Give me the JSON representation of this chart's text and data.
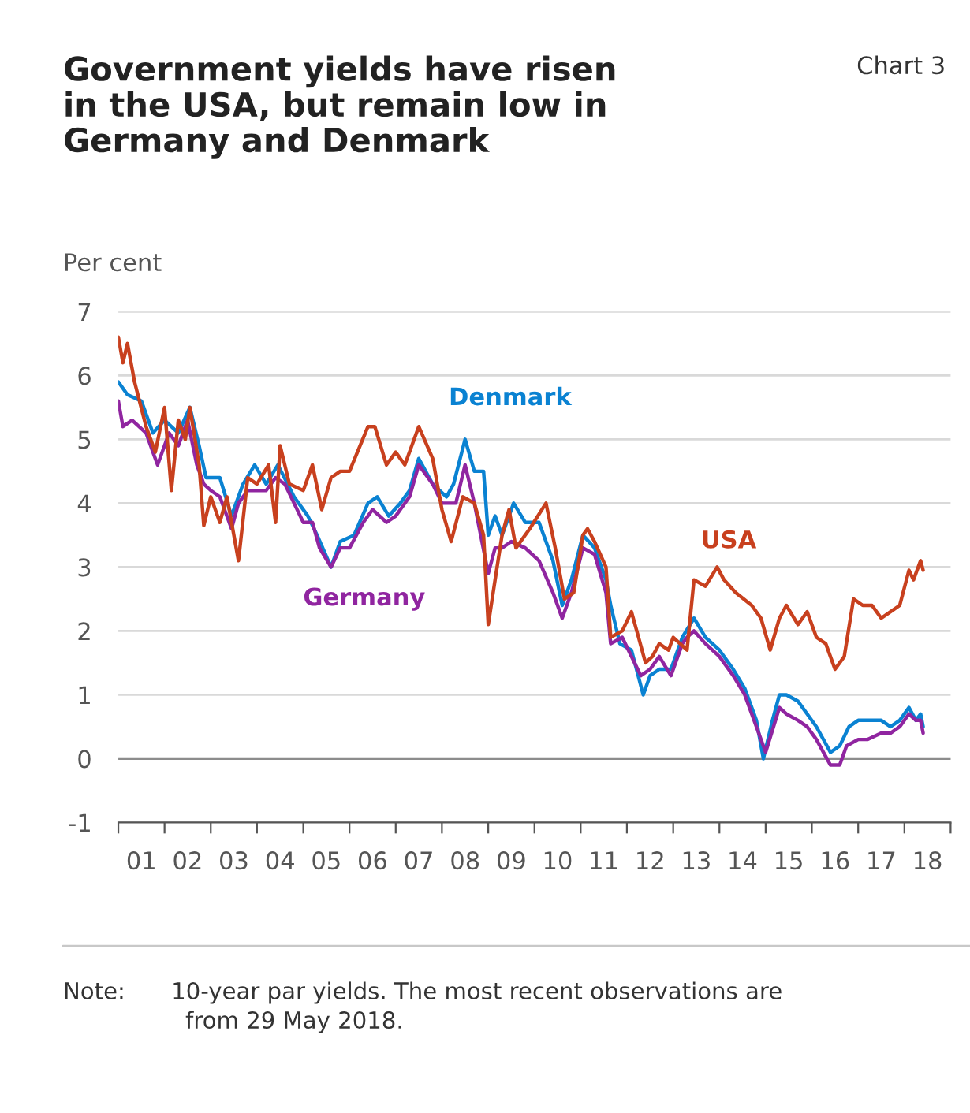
{
  "chart_data": {
    "type": "line",
    "title": "Government yields have risen\nin the USA, but remain low in\nGermany and Denmark",
    "ylabel": "Per cent",
    "annotations": [
      "Chart 3",
      "Note:  10-year par yields. The most recent observations are\n      from 29 May 2018."
    ],
    "xlim": [
      "2001",
      "2019"
    ],
    "xticks": [
      {
        "value": "2001",
        "label": null
      },
      {
        "value": "2001-07-02",
        "label": "01"
      },
      {
        "value": "2002",
        "label": null
      },
      {
        "value": "2002-07-02",
        "label": "02"
      },
      {
        "value": "2003",
        "label": null
      },
      {
        "value": "2003-07-02",
        "label": "03"
      },
      {
        "value": "2004",
        "label": null
      },
      {
        "value": "2004-07-02",
        "label": "04"
      },
      {
        "value": "2005",
        "label": null
      },
      {
        "value": "2005-07-02",
        "label": "05"
      },
      {
        "value": "2006",
        "label": null
      },
      {
        "value": "2006-07-02",
        "label": "06"
      },
      {
        "value": "2007",
        "label": null
      },
      {
        "value": "2007-07-02",
        "label": "07"
      },
      {
        "value": "2008",
        "label": null
      },
      {
        "value": "2008-07-02",
        "label": "08"
      },
      {
        "value": "2009",
        "label": null
      },
      {
        "value": "2009-07-02",
        "label": "09"
      },
      {
        "value": "2010",
        "label": null
      },
      {
        "value": "2010-07-02",
        "label": "10"
      },
      {
        "value": "2011",
        "label": null
      },
      {
        "value": "2011-07-02",
        "label": "11"
      },
      {
        "value": "2012",
        "label": null
      },
      {
        "value": "2012-07-02",
        "label": "12"
      },
      {
        "value": "2013",
        "label": null
      },
      {
        "value": "2013-07-02",
        "label": "13"
      },
      {
        "value": "2014",
        "label": null
      },
      {
        "value": "2014-07-02",
        "label": "14"
      },
      {
        "value": "2015",
        "label": null
      },
      {
        "value": "2015-07-02",
        "label": "15"
      },
      {
        "value": "2016",
        "label": null
      },
      {
        "value": "2016-07-02",
        "label": "16"
      },
      {
        "value": "2017",
        "label": null
      },
      {
        "value": "2017-07-02",
        "label": "17"
      },
      {
        "value": "2018",
        "label": null
      },
      {
        "value": "2018-07-02",
        "label": "18"
      },
      {
        "value": "2019",
        "label": null
      }
    ],
    "ylim": [
      -1,
      7
    ],
    "yticks": [
      -1,
      0,
      1,
      2,
      3,
      4,
      5,
      6,
      7
    ],
    "grid": "y",
    "line_style": "solid",
    "ref_lines": [
      {
        "axis": "y",
        "value": 0,
        "color": "#8c8c8c"
      }
    ],
    "series": [
      {
        "name": "Denmark",
        "color": "#0a82d2",
        "x": [
          "2001-01-01",
          "2001-03-14",
          "2001-07-02",
          "2001-10-01",
          "2002-01-01",
          "2002-04-20",
          "2002-07-20",
          "2002-10-01",
          "2002-11-25",
          "2003-03-14",
          "2003-06-14",
          "2003-09-13",
          "2003-12-14",
          "2004-03-14",
          "2004-06-14",
          "2004-10-20",
          "2005-02-06",
          "2005-04-20",
          "2005-08-08",
          "2005-10-20",
          "2006-02-06",
          "2006-05-27",
          "2006-08-08",
          "2006-11-07",
          "2007-02-06",
          "2007-04-20",
          "2007-07-02",
          "2007-10-20",
          "2008-02-06",
          "2008-04-02",
          "2008-07-02",
          "2008-09-13",
          "2008-11-25",
          "2009-01-01",
          "2009-02-24",
          "2009-04-20",
          "2009-07-20",
          "2009-10-20",
          "2010-02-06",
          "2010-05-27",
          "2010-08-08",
          "2010-10-20",
          "2011-01-19",
          "2011-04-20",
          "2011-07-20",
          "2011-08-26",
          "2011-11-07",
          "2012-02-06",
          "2012-05-09",
          "2012-07-02",
          "2012-09-13",
          "2012-12-14",
          "2013-03-14",
          "2013-06-14",
          "2013-09-13",
          "2014-01-01",
          "2014-04-20",
          "2014-07-20",
          "2014-10-20",
          "2014-12-14",
          "2015-02-24",
          "2015-04-20",
          "2015-06-14",
          "2015-09-13",
          "2015-11-25",
          "2016-02-06",
          "2016-05-27",
          "2016-08-08",
          "2016-10-20",
          "2017-01-01",
          "2017-03-14",
          "2017-07-02",
          "2017-09-13",
          "2017-11-25",
          "2018-02-06",
          "2018-04-02",
          "2018-05-09",
          "2018-05-29"
        ],
        "values": [
          5.9,
          5.7,
          5.6,
          5.1,
          5.3,
          5.1,
          5.5,
          4.9,
          4.4,
          4.4,
          3.8,
          4.3,
          4.6,
          4.3,
          4.6,
          4.1,
          3.8,
          3.5,
          3.0,
          3.4,
          3.5,
          4.0,
          4.1,
          3.8,
          4.0,
          4.2,
          4.7,
          4.3,
          4.1,
          4.3,
          5.0,
          4.5,
          4.5,
          3.5,
          3.8,
          3.5,
          4.0,
          3.7,
          3.7,
          3.1,
          2.4,
          2.8,
          3.5,
          3.3,
          2.8,
          2.4,
          1.8,
          1.7,
          1.0,
          1.3,
          1.4,
          1.4,
          1.9,
          2.2,
          1.9,
          1.7,
          1.4,
          1.1,
          0.6,
          0.0,
          0.6,
          1.0,
          1.0,
          0.9,
          0.7,
          0.5,
          0.1,
          0.2,
          0.5,
          0.6,
          0.6,
          0.6,
          0.5,
          0.6,
          0.8,
          0.6,
          0.7,
          0.5
        ]
      },
      {
        "name": "Germany",
        "color": "#9025a0",
        "x": [
          "2001-01-01",
          "2001-02-06",
          "2001-04-20",
          "2001-08-08",
          "2001-10-01",
          "2001-11-07",
          "2002-02-06",
          "2002-04-20",
          "2002-07-02",
          "2002-09-13",
          "2002-11-07",
          "2003-01-01",
          "2003-03-14",
          "2003-06-14",
          "2003-08-08",
          "2003-10-20",
          "2004-03-14",
          "2004-05-27",
          "2004-08-08",
          "2004-10-20",
          "2005-01-01",
          "2005-03-14",
          "2005-05-09",
          "2005-08-08",
          "2005-10-20",
          "2006-01-01",
          "2006-04-20",
          "2006-07-02",
          "2006-10-20",
          "2007-01-01",
          "2007-04-20",
          "2007-07-02",
          "2007-10-20",
          "2008-01-01",
          "2008-04-20",
          "2008-07-02",
          "2008-09-13",
          "2009-01-01",
          "2009-02-24",
          "2009-04-20",
          "2009-07-02",
          "2009-10-20",
          "2010-02-06",
          "2010-05-27",
          "2010-08-08",
          "2010-10-20",
          "2011-01-19",
          "2011-04-20",
          "2011-07-20",
          "2011-08-26",
          "2011-11-25",
          "2012-02-06",
          "2012-04-20",
          "2012-07-02",
          "2012-09-13",
          "2012-12-14",
          "2013-03-14",
          "2013-04-20",
          "2013-06-14",
          "2013-09-13",
          "2014-01-01",
          "2014-04-20",
          "2014-07-20",
          "2014-10-20",
          "2015-01-01",
          "2015-04-20",
          "2015-06-14",
          "2015-09-13",
          "2015-11-25",
          "2016-02-06",
          "2016-05-27",
          "2016-08-08",
          "2016-10-01",
          "2017-01-01",
          "2017-03-14",
          "2017-07-02",
          "2017-09-13",
          "2017-11-25",
          "2018-02-06",
          "2018-04-02",
          "2018-05-09",
          "2018-05-29"
        ],
        "values": [
          5.6,
          5.2,
          5.3,
          5.1,
          4.8,
          4.6,
          5.1,
          4.9,
          5.3,
          4.6,
          4.3,
          4.2,
          4.1,
          3.6,
          4.0,
          4.2,
          4.2,
          4.4,
          4.3,
          4.0,
          3.7,
          3.7,
          3.3,
          3.0,
          3.3,
          3.3,
          3.7,
          3.9,
          3.7,
          3.8,
          4.1,
          4.6,
          4.3,
          4.0,
          4.0,
          4.6,
          4.0,
          2.9,
          3.3,
          3.3,
          3.4,
          3.3,
          3.1,
          2.6,
          2.2,
          2.6,
          3.3,
          3.2,
          2.6,
          1.8,
          1.9,
          1.6,
          1.3,
          1.4,
          1.6,
          1.3,
          1.8,
          1.9,
          2.0,
          1.8,
          1.6,
          1.3,
          1.0,
          0.5,
          0.1,
          0.8,
          0.7,
          0.6,
          0.5,
          0.3,
          -0.1,
          -0.1,
          0.2,
          0.3,
          0.3,
          0.4,
          0.4,
          0.5,
          0.7,
          0.6,
          0.6,
          0.4
        ]
      },
      {
        "name": "USA",
        "color": "#c8401e",
        "x": [
          "2001-01-01",
          "2001-02-06",
          "2001-03-14",
          "2001-05-09",
          "2001-08-08",
          "2001-10-20",
          "2002-01-01",
          "2002-02-24",
          "2002-04-20",
          "2002-06-14",
          "2002-07-20",
          "2002-10-01",
          "2002-11-07",
          "2003-01-01",
          "2003-03-14",
          "2003-05-09",
          "2003-08-08",
          "2003-10-20",
          "2004-01-01",
          "2004-04-02",
          "2004-05-27",
          "2004-07-02",
          "2004-09-13",
          "2005-01-01",
          "2005-03-14",
          "2005-05-27",
          "2005-08-08",
          "2005-10-20",
          "2006-01-01",
          "2006-05-27",
          "2006-07-20",
          "2006-10-20",
          "2007-01-01",
          "2007-03-14",
          "2007-07-02",
          "2007-10-20",
          "2008-01-01",
          "2008-03-14",
          "2008-06-14",
          "2008-09-13",
          "2008-11-25",
          "2009-01-01",
          "2009-02-24",
          "2009-04-20",
          "2009-06-14",
          "2009-08-08",
          "2009-11-25",
          "2010-04-02",
          "2010-06-14",
          "2010-08-26",
          "2010-11-07",
          "2011-01-19",
          "2011-02-24",
          "2011-04-20",
          "2011-07-20",
          "2011-08-26",
          "2011-11-25",
          "2012-02-06",
          "2012-04-02",
          "2012-05-27",
          "2012-07-20",
          "2012-09-13",
          "2012-11-25",
          "2013-01-01",
          "2013-04-20",
          "2013-06-14",
          "2013-09-13",
          "2013-12-14",
          "2014-02-06",
          "2014-05-09",
          "2014-09-13",
          "2014-11-25",
          "2015-02-06",
          "2015-04-20",
          "2015-06-14",
          "2015-09-13",
          "2015-11-25",
          "2016-02-06",
          "2016-04-20",
          "2016-07-02",
          "2016-09-13",
          "2016-11-25",
          "2017-02-06",
          "2017-04-20",
          "2017-07-02",
          "2017-09-13",
          "2017-11-25",
          "2018-02-06",
          "2018-03-14",
          "2018-05-09",
          "2018-05-29"
        ],
        "values": [
          6.6,
          6.2,
          6.5,
          5.9,
          5.2,
          4.8,
          5.5,
          4.2,
          5.3,
          5.0,
          5.5,
          4.6,
          3.65,
          4.1,
          3.7,
          4.1,
          3.1,
          4.4,
          4.3,
          4.6,
          3.7,
          4.9,
          4.3,
          4.2,
          4.6,
          3.9,
          4.4,
          4.5,
          4.5,
          5.2,
          5.2,
          4.6,
          4.8,
          4.6,
          5.2,
          4.7,
          3.9,
          3.4,
          4.1,
          4.0,
          3.5,
          2.1,
          2.8,
          3.5,
          3.9,
          3.3,
          3.6,
          4.0,
          3.3,
          2.5,
          2.6,
          3.5,
          3.6,
          3.4,
          3.0,
          1.9,
          2.0,
          2.3,
          1.9,
          1.5,
          1.6,
          1.8,
          1.7,
          1.9,
          1.7,
          2.8,
          2.7,
          3.0,
          2.8,
          2.6,
          2.4,
          2.2,
          1.7,
          2.2,
          2.4,
          2.1,
          2.3,
          1.9,
          1.8,
          1.4,
          1.6,
          2.5,
          2.4,
          2.4,
          2.2,
          2.3,
          2.4,
          2.95,
          2.8,
          3.1,
          2.95
        ]
      }
    ]
  }
}
